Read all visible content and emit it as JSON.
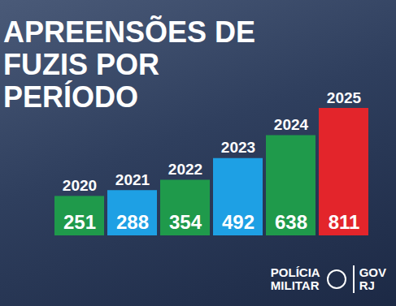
{
  "chart_data": {
    "type": "bar",
    "title": "APREENSÕES DE FUZIS POR PERÍODO",
    "categories": [
      "2020",
      "2021",
      "2022",
      "2023",
      "2024",
      "2025"
    ],
    "values": [
      251,
      288,
      354,
      492,
      638,
      811
    ],
    "colors": [
      "#1f9a4b",
      "#1ea0e4",
      "#1f9a4b",
      "#1ea0e4",
      "#1f9a4b",
      "#e3252b"
    ],
    "ylim": [
      0,
      811
    ],
    "data_labels": true,
    "tick_labels": "x",
    "grid": false
  },
  "footer": [
    [
      "POLÍCIA",
      "MILITAR"
    ],
    [
      "GOV",
      "RJ"
    ]
  ]
}
